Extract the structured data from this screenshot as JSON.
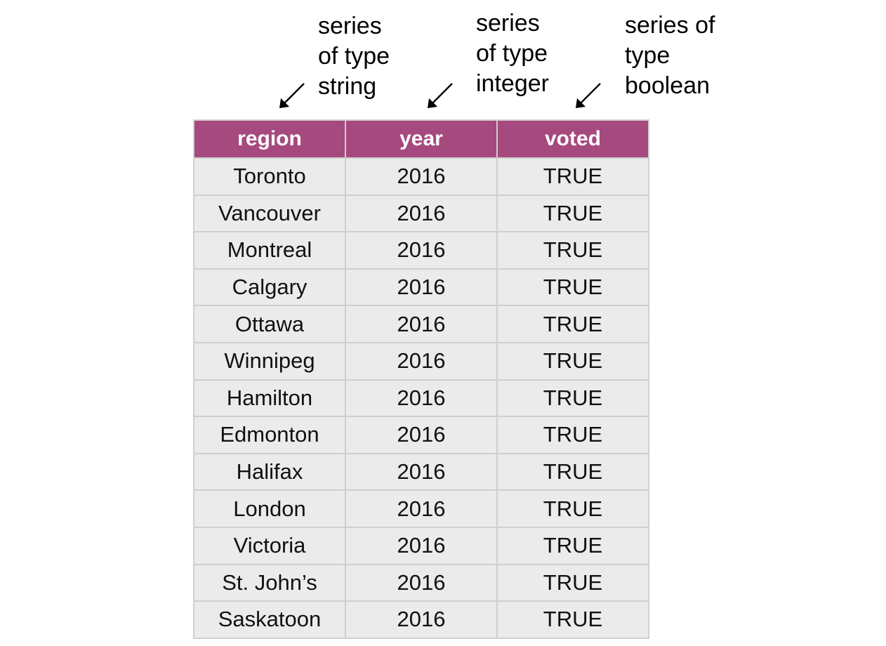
{
  "annotations": {
    "string": [
      "series",
      "of type",
      "string"
    ],
    "integer": [
      "series",
      "of type",
      "integer"
    ],
    "boolean": [
      "series of",
      "type",
      "boolean"
    ]
  },
  "table": {
    "header_color": "#a6497e",
    "cell_color": "#ebebeb",
    "columns": [
      "region",
      "year",
      "voted"
    ],
    "rows": [
      [
        "Toronto",
        "2016",
        "TRUE"
      ],
      [
        "Vancouver",
        "2016",
        "TRUE"
      ],
      [
        "Montreal",
        "2016",
        "TRUE"
      ],
      [
        "Calgary",
        "2016",
        "TRUE"
      ],
      [
        "Ottawa",
        "2016",
        "TRUE"
      ],
      [
        "Winnipeg",
        "2016",
        "TRUE"
      ],
      [
        "Hamilton",
        "2016",
        "TRUE"
      ],
      [
        "Edmonton",
        "2016",
        "TRUE"
      ],
      [
        "Halifax",
        "2016",
        "TRUE"
      ],
      [
        "London",
        "2016",
        "TRUE"
      ],
      [
        "Victoria",
        "2016",
        "TRUE"
      ],
      [
        "St. John’s",
        "2016",
        "TRUE"
      ],
      [
        "Saskatoon",
        "2016",
        "TRUE"
      ]
    ]
  }
}
